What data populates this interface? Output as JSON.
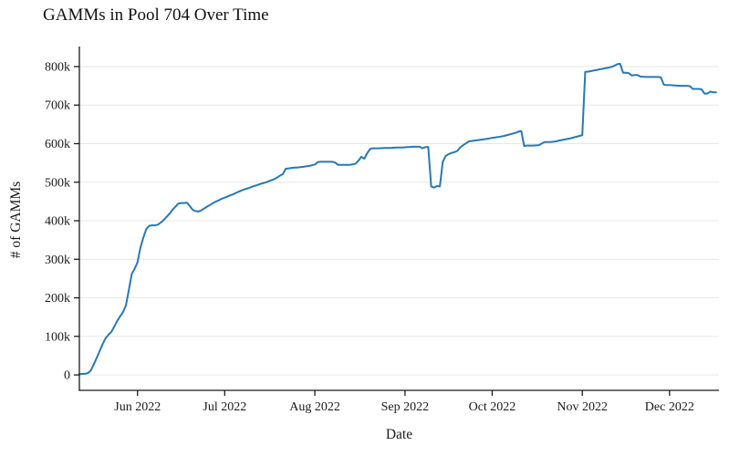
{
  "chart_data": {
    "type": "line",
    "title": "GAMMs in Pool 704 Over Time",
    "xlabel": "Date",
    "ylabel": "# of GAMMs",
    "legend": "none",
    "grid": "horizontal-only",
    "colors": {
      "line": "#2878b5",
      "gridline": "#e7e7e7",
      "axis": "#1a1a1a",
      "text": "#1a1a1a",
      "background": "#ffffff"
    },
    "x_domain": [
      "2022-05-12",
      "2022-12-18"
    ],
    "y_domain": [
      -40000,
      852000
    ],
    "x_ticks": [
      {
        "date": "2022-06-01",
        "label": "Jun 2022"
      },
      {
        "date": "2022-07-01",
        "label": "Jul 2022"
      },
      {
        "date": "2022-08-01",
        "label": "Aug 2022"
      },
      {
        "date": "2022-09-01",
        "label": "Sep 2022"
      },
      {
        "date": "2022-10-01",
        "label": "Oct 2022"
      },
      {
        "date": "2022-11-01",
        "label": "Nov 2022"
      },
      {
        "date": "2022-12-01",
        "label": "Dec 2022"
      }
    ],
    "y_ticks": [
      {
        "value": 0,
        "label": "0"
      },
      {
        "value": 100000,
        "label": "100k"
      },
      {
        "value": 200000,
        "label": "200k"
      },
      {
        "value": 300000,
        "label": "300k"
      },
      {
        "value": 400000,
        "label": "400k"
      },
      {
        "value": 500000,
        "label": "500k"
      },
      {
        "value": 600000,
        "label": "600k"
      },
      {
        "value": 700000,
        "label": "700k"
      },
      {
        "value": 800000,
        "label": "800k"
      }
    ],
    "series": [
      {
        "name": "GAMMs in Pool 704",
        "points": [
          [
            "2022-05-12",
            2000
          ],
          [
            "2022-05-13",
            2500
          ],
          [
            "2022-05-14",
            3000
          ],
          [
            "2022-05-15",
            5000
          ],
          [
            "2022-05-16",
            12000
          ],
          [
            "2022-05-17",
            28000
          ],
          [
            "2022-05-18",
            45000
          ],
          [
            "2022-05-19",
            62000
          ],
          [
            "2022-05-20",
            80000
          ],
          [
            "2022-05-21",
            95000
          ],
          [
            "2022-05-22",
            104000
          ],
          [
            "2022-05-23",
            112000
          ],
          [
            "2022-05-24",
            125000
          ],
          [
            "2022-05-25",
            140000
          ],
          [
            "2022-05-26",
            152000
          ],
          [
            "2022-05-27",
            163000
          ],
          [
            "2022-05-28",
            180000
          ],
          [
            "2022-05-29",
            220000
          ],
          [
            "2022-05-30",
            262000
          ],
          [
            "2022-05-31",
            275000
          ],
          [
            "2022-06-01",
            292000
          ],
          [
            "2022-06-02",
            330000
          ],
          [
            "2022-06-03",
            356000
          ],
          [
            "2022-06-04",
            378000
          ],
          [
            "2022-06-05",
            387000
          ],
          [
            "2022-06-06",
            388000
          ],
          [
            "2022-06-07",
            388000
          ],
          [
            "2022-06-08",
            390000
          ],
          [
            "2022-06-09",
            395000
          ],
          [
            "2022-06-10",
            402000
          ],
          [
            "2022-06-11",
            410000
          ],
          [
            "2022-06-12",
            418000
          ],
          [
            "2022-06-13",
            428000
          ],
          [
            "2022-06-14",
            436000
          ],
          [
            "2022-06-15",
            444000
          ],
          [
            "2022-06-16",
            446000
          ],
          [
            "2022-06-17",
            446000
          ],
          [
            "2022-06-18",
            447000
          ],
          [
            "2022-06-19",
            438000
          ],
          [
            "2022-06-20",
            428000
          ],
          [
            "2022-06-21",
            425000
          ],
          [
            "2022-06-22",
            424000
          ],
          [
            "2022-06-23",
            427000
          ],
          [
            "2022-06-24",
            432000
          ],
          [
            "2022-06-25",
            437000
          ],
          [
            "2022-06-26",
            441000
          ],
          [
            "2022-06-27",
            446000
          ],
          [
            "2022-06-28",
            450000
          ],
          [
            "2022-06-29",
            453000
          ],
          [
            "2022-06-30",
            457000
          ],
          [
            "2022-07-01",
            460000
          ],
          [
            "2022-07-02",
            463000
          ],
          [
            "2022-07-03",
            466000
          ],
          [
            "2022-07-04",
            469000
          ],
          [
            "2022-07-05",
            473000
          ],
          [
            "2022-07-06",
            476000
          ],
          [
            "2022-07-07",
            479000
          ],
          [
            "2022-07-08",
            482000
          ],
          [
            "2022-07-09",
            484000
          ],
          [
            "2022-07-10",
            487000
          ],
          [
            "2022-07-11",
            490000
          ],
          [
            "2022-07-12",
            492000
          ],
          [
            "2022-07-13",
            495000
          ],
          [
            "2022-07-14",
            497000
          ],
          [
            "2022-07-15",
            499000
          ],
          [
            "2022-07-16",
            502000
          ],
          [
            "2022-07-17",
            505000
          ],
          [
            "2022-07-18",
            508000
          ],
          [
            "2022-07-19",
            512000
          ],
          [
            "2022-07-20",
            517000
          ],
          [
            "2022-07-21",
            521000
          ],
          [
            "2022-07-22",
            535000
          ],
          [
            "2022-07-23",
            536000
          ],
          [
            "2022-07-24",
            537000
          ],
          [
            "2022-07-25",
            538000
          ],
          [
            "2022-07-26",
            538000
          ],
          [
            "2022-07-27",
            539000
          ],
          [
            "2022-07-28",
            540000
          ],
          [
            "2022-07-29",
            541000
          ],
          [
            "2022-07-30",
            542000
          ],
          [
            "2022-07-31",
            544000
          ],
          [
            "2022-08-01",
            546000
          ],
          [
            "2022-08-02",
            552000
          ],
          [
            "2022-08-03",
            553000
          ],
          [
            "2022-08-05",
            553000
          ],
          [
            "2022-08-07",
            553000
          ],
          [
            "2022-08-08",
            551000
          ],
          [
            "2022-08-09",
            545000
          ],
          [
            "2022-08-11",
            545000
          ],
          [
            "2022-08-13",
            545000
          ],
          [
            "2022-08-14",
            546000
          ],
          [
            "2022-08-15",
            548000
          ],
          [
            "2022-08-16",
            556000
          ],
          [
            "2022-08-17",
            566000
          ],
          [
            "2022-08-18",
            561000
          ],
          [
            "2022-08-19",
            575000
          ],
          [
            "2022-08-20",
            586000
          ],
          [
            "2022-08-21",
            588000
          ],
          [
            "2022-08-23",
            588000
          ],
          [
            "2022-08-25",
            589000
          ],
          [
            "2022-08-27",
            589000
          ],
          [
            "2022-08-29",
            590000
          ],
          [
            "2022-08-31",
            590000
          ],
          [
            "2022-09-02",
            591000
          ],
          [
            "2022-09-04",
            592000
          ],
          [
            "2022-09-06",
            592000
          ],
          [
            "2022-09-07",
            588000
          ],
          [
            "2022-09-08",
            591000
          ],
          [
            "2022-09-09",
            591000
          ],
          [
            "2022-09-10",
            489000
          ],
          [
            "2022-09-11",
            486000
          ],
          [
            "2022-09-12",
            490000
          ],
          [
            "2022-09-13",
            489000
          ],
          [
            "2022-09-14",
            553000
          ],
          [
            "2022-09-15",
            568000
          ],
          [
            "2022-09-16",
            573000
          ],
          [
            "2022-09-17",
            576000
          ],
          [
            "2022-09-18",
            578000
          ],
          [
            "2022-09-19",
            581000
          ],
          [
            "2022-09-20",
            590000
          ],
          [
            "2022-09-21",
            596000
          ],
          [
            "2022-09-22",
            601000
          ],
          [
            "2022-09-23",
            606000
          ],
          [
            "2022-09-25",
            608000
          ],
          [
            "2022-09-27",
            610000
          ],
          [
            "2022-09-29",
            612000
          ],
          [
            "2022-10-01",
            615000
          ],
          [
            "2022-10-03",
            617000
          ],
          [
            "2022-10-05",
            620000
          ],
          [
            "2022-10-07",
            624000
          ],
          [
            "2022-10-09",
            628000
          ],
          [
            "2022-10-10",
            631000
          ],
          [
            "2022-10-11",
            633000
          ],
          [
            "2022-10-12",
            594000
          ],
          [
            "2022-10-13",
            595000
          ],
          [
            "2022-10-15",
            595000
          ],
          [
            "2022-10-17",
            596000
          ],
          [
            "2022-10-18",
            600000
          ],
          [
            "2022-10-19",
            604000
          ],
          [
            "2022-10-21",
            604000
          ],
          [
            "2022-10-23",
            606000
          ],
          [
            "2022-10-24",
            608000
          ],
          [
            "2022-10-26",
            611000
          ],
          [
            "2022-10-28",
            614000
          ],
          [
            "2022-10-30",
            618000
          ],
          [
            "2022-11-01",
            622000
          ],
          [
            "2022-11-02",
            786000
          ],
          [
            "2022-11-03",
            787000
          ],
          [
            "2022-11-04",
            788000
          ],
          [
            "2022-11-05",
            790000
          ],
          [
            "2022-11-06",
            791000
          ],
          [
            "2022-11-07",
            793000
          ],
          [
            "2022-11-08",
            794000
          ],
          [
            "2022-11-09",
            796000
          ],
          [
            "2022-11-10",
            797000
          ],
          [
            "2022-11-11",
            799000
          ],
          [
            "2022-11-12",
            802000
          ],
          [
            "2022-11-13",
            806000
          ],
          [
            "2022-11-14",
            807000
          ],
          [
            "2022-11-15",
            784000
          ],
          [
            "2022-11-16",
            784000
          ],
          [
            "2022-11-17",
            783000
          ],
          [
            "2022-11-18",
            777000
          ],
          [
            "2022-11-19",
            778000
          ],
          [
            "2022-11-20",
            778000
          ],
          [
            "2022-11-21",
            774000
          ],
          [
            "2022-11-23",
            773000
          ],
          [
            "2022-11-25",
            773000
          ],
          [
            "2022-11-27",
            773000
          ],
          [
            "2022-11-28",
            772000
          ],
          [
            "2022-11-29",
            753000
          ],
          [
            "2022-11-30",
            752000
          ],
          [
            "2022-12-01",
            752000
          ],
          [
            "2022-12-03",
            751000
          ],
          [
            "2022-12-05",
            750000
          ],
          [
            "2022-12-07",
            750000
          ],
          [
            "2022-12-08",
            749000
          ],
          [
            "2022-12-09",
            742000
          ],
          [
            "2022-12-11",
            742000
          ],
          [
            "2022-12-12",
            741000
          ],
          [
            "2022-12-13",
            730000
          ],
          [
            "2022-12-14",
            730000
          ],
          [
            "2022-12-15",
            735000
          ],
          [
            "2022-12-16",
            733000
          ],
          [
            "2022-12-17",
            733000
          ]
        ]
      }
    ]
  }
}
